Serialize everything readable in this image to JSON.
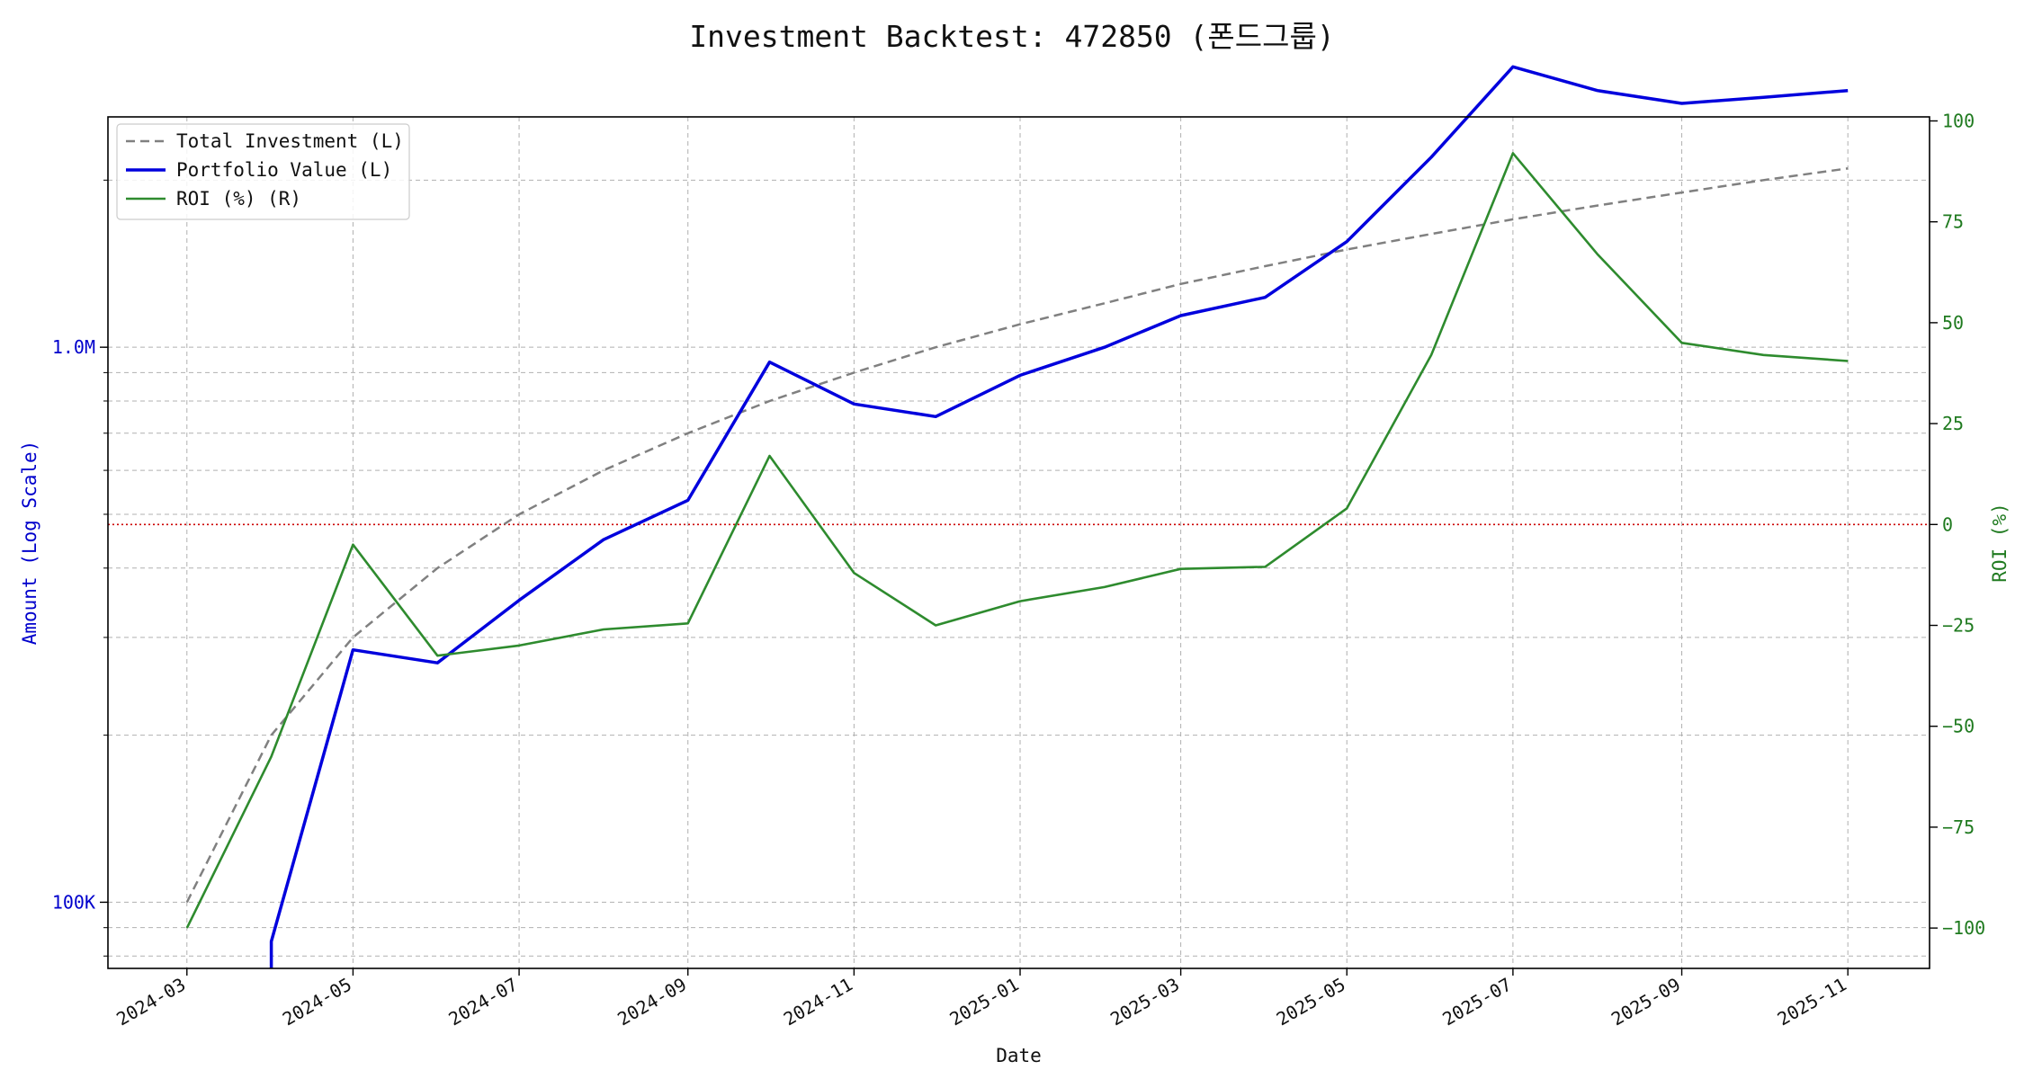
{
  "chart_data": {
    "type": "line",
    "title": "Investment Backtest: 472850 (폰드그룹)",
    "xlabel": "Date",
    "ylabel_left": "Amount (Log Scale)",
    "ylabel_right": "ROI (%)",
    "left_axis": {
      "scale": "log",
      "ylim": [
        76000,
        2600000
      ],
      "ticks": [
        100000,
        1000000
      ],
      "tick_labels": [
        "100K",
        "1.0M"
      ]
    },
    "right_axis": {
      "scale": "linear",
      "ylim": [
        -110,
        101
      ],
      "ticks": [
        -100,
        -75,
        -50,
        -25,
        0,
        25,
        50,
        75,
        100
      ],
      "tick_labels": [
        "−100",
        "−75",
        "−50",
        "−25",
        "0",
        "25",
        "50",
        "75",
        "100"
      ]
    },
    "x_ticks": [
      "2024-03",
      "2024-05",
      "2024-07",
      "2024-09",
      "2024-11",
      "2025-01",
      "2025-03",
      "2025-05",
      "2025-07",
      "2025-09",
      "2025-11"
    ],
    "x_range": [
      "2024-02-01",
      "2025-12-01"
    ],
    "x": [
      "2024-03-01",
      "2024-04-01",
      "2024-05-01",
      "2024-06-01",
      "2024-07-01",
      "2024-08-01",
      "2024-09-01",
      "2024-10-01",
      "2024-11-01",
      "2024-12-01",
      "2025-01-01",
      "2025-02-01",
      "2025-03-01",
      "2025-04-01",
      "2025-05-01",
      "2025-06-01",
      "2025-07-01",
      "2025-08-01",
      "2025-09-01",
      "2025-10-01",
      "2025-11-01"
    ],
    "series": [
      {
        "name": "Total Investment (L)",
        "axis": "left",
        "style": "dashed",
        "color": "#808080",
        "values": [
          100000,
          200000,
          300000,
          400000,
          500000,
          600000,
          700000,
          800000,
          900000,
          1000000,
          1100000,
          1200000,
          1300000,
          1400000,
          1500000,
          1600000,
          1700000,
          1800000,
          1900000,
          2000000,
          2100000
        ]
      },
      {
        "name": "Portfolio Value (L)",
        "axis": "left",
        "style": "solid",
        "color": "#0000dd",
        "values": [
          null,
          85000,
          285000,
          270000,
          350000,
          450000,
          530000,
          940000,
          790000,
          750000,
          890000,
          1000000,
          1140000,
          1230000,
          1550000,
          2200000,
          3200000,
          2900000,
          2750000,
          2820000,
          2900000
        ],
        "drop_to_below_axis_at": 1
      },
      {
        "name": "ROI (%) (R)",
        "axis": "right",
        "style": "solid",
        "color": "#2e8b2e",
        "values": [
          -100,
          -57.5,
          -5,
          -32.5,
          -30,
          -26,
          -24.5,
          17,
          -12,
          -25,
          -19,
          -15.5,
          -11,
          -10.5,
          4,
          42,
          92,
          67,
          45,
          42,
          40.5
        ]
      }
    ],
    "reference_line": {
      "axis": "right",
      "value": 0,
      "color": "#cc0000",
      "style": "dotted"
    },
    "grid": true,
    "legend_position": "upper-left"
  }
}
